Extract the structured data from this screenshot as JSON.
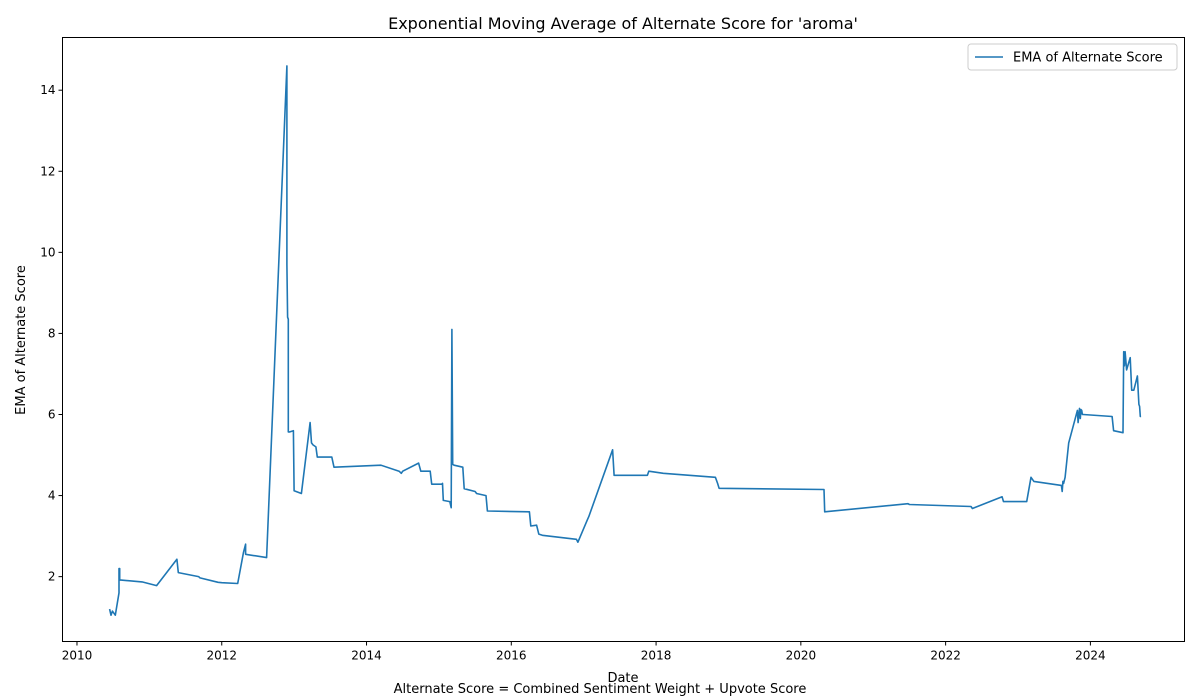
{
  "chart_data": {
    "type": "line",
    "title": "Exponential Moving Average of Alternate Score for 'aroma'",
    "xlabel": "Date",
    "ylabel": "EMA of Alternate Score",
    "footnote": "Alternate Score = Combined Sentiment Weight + Upvote Score",
    "x_range": [
      2009.8,
      2025.3
    ],
    "y_range": [
      0.4,
      15.3
    ],
    "x_ticks": [
      2010,
      2012,
      2014,
      2016,
      2018,
      2020,
      2022,
      2024
    ],
    "y_ticks": [
      2,
      4,
      6,
      8,
      10,
      12,
      14
    ],
    "grid": false,
    "legend_position": "top-right",
    "series": [
      {
        "name": "EMA of Alternate Score",
        "color": "#1f77b4",
        "x": [
          2010.45,
          2010.47,
          2010.49,
          2010.53,
          2010.58,
          2010.58,
          2010.59,
          2010.59,
          2010.9,
          2011.1,
          2011.38,
          2011.4,
          2011.68,
          2011.7,
          2011.95,
          2012.0,
          2012.22,
          2012.3,
          2012.33,
          2012.33,
          2012.62,
          2012.9,
          2012.9,
          2012.91,
          2012.92,
          2012.92,
          2012.94,
          2012.99,
          2013.0,
          2013.1,
          2013.22,
          2013.24,
          2013.26,
          2013.3,
          2013.32,
          2013.52,
          2013.55,
          2014.2,
          2014.45,
          2014.48,
          2014.5,
          2014.72,
          2014.75,
          2014.88,
          2014.9,
          2015.04,
          2015.05,
          2015.06,
          2015.15,
          2015.17,
          2015.18,
          2015.19,
          2015.21,
          2015.33,
          2015.35,
          2015.5,
          2015.52,
          2015.65,
          2015.67,
          2016.25,
          2016.27,
          2016.35,
          2016.38,
          2016.43,
          2016.9,
          2016.92,
          2017.05,
          2017.07,
          2017.4,
          2017.42,
          2017.88,
          2017.9,
          2018.1,
          2018.82,
          2018.85,
          2018.87,
          2020.32,
          2020.33,
          2021.48,
          2021.5,
          2022.35,
          2022.37,
          2022.78,
          2022.8,
          2023.0,
          2023.12,
          2023.18,
          2023.22,
          2023.6,
          2023.61,
          2023.62,
          2023.63,
          2023.65,
          2023.7,
          2023.82,
          2023.83,
          2023.85,
          2023.86,
          2023.87,
          2023.88,
          2023.89,
          2023.9,
          2024.3,
          2024.32,
          2024.45,
          2024.46,
          2024.47,
          2024.48,
          2024.5,
          2024.55,
          2024.57,
          2024.6,
          2024.65,
          2024.67,
          2024.68,
          2024.69,
          2024.7
        ],
        "y": [
          1.2,
          1.05,
          1.15,
          1.05,
          1.6,
          2.2,
          2.2,
          1.92,
          1.87,
          1.78,
          2.43,
          2.1,
          2.0,
          1.97,
          1.86,
          1.85,
          1.83,
          2.6,
          2.8,
          2.55,
          2.47,
          14.6,
          9.7,
          8.4,
          8.35,
          5.57,
          5.57,
          5.6,
          4.12,
          4.05,
          5.8,
          5.3,
          5.25,
          5.2,
          4.95,
          4.95,
          4.7,
          4.75,
          4.6,
          4.55,
          4.6,
          4.8,
          4.6,
          4.6,
          4.28,
          4.28,
          4.3,
          3.88,
          3.85,
          3.7,
          8.1,
          4.77,
          4.75,
          4.7,
          4.17,
          4.1,
          4.05,
          4.0,
          3.62,
          3.6,
          3.25,
          3.27,
          3.05,
          3.02,
          2.92,
          2.85,
          3.4,
          3.48,
          5.13,
          4.5,
          4.5,
          4.6,
          4.55,
          4.45,
          4.3,
          4.18,
          4.15,
          3.6,
          3.8,
          3.78,
          3.73,
          3.68,
          3.97,
          3.85,
          3.85,
          3.85,
          4.45,
          4.35,
          4.25,
          4.1,
          4.35,
          4.3,
          4.45,
          5.3,
          6.1,
          5.8,
          6.15,
          5.9,
          6.12,
          6.1,
          6.0,
          6.0,
          5.95,
          5.6,
          5.55,
          7.55,
          7.2,
          7.55,
          7.1,
          7.4,
          6.6,
          6.6,
          6.95,
          6.25,
          6.2,
          5.95,
          5.95
        ]
      }
    ]
  }
}
